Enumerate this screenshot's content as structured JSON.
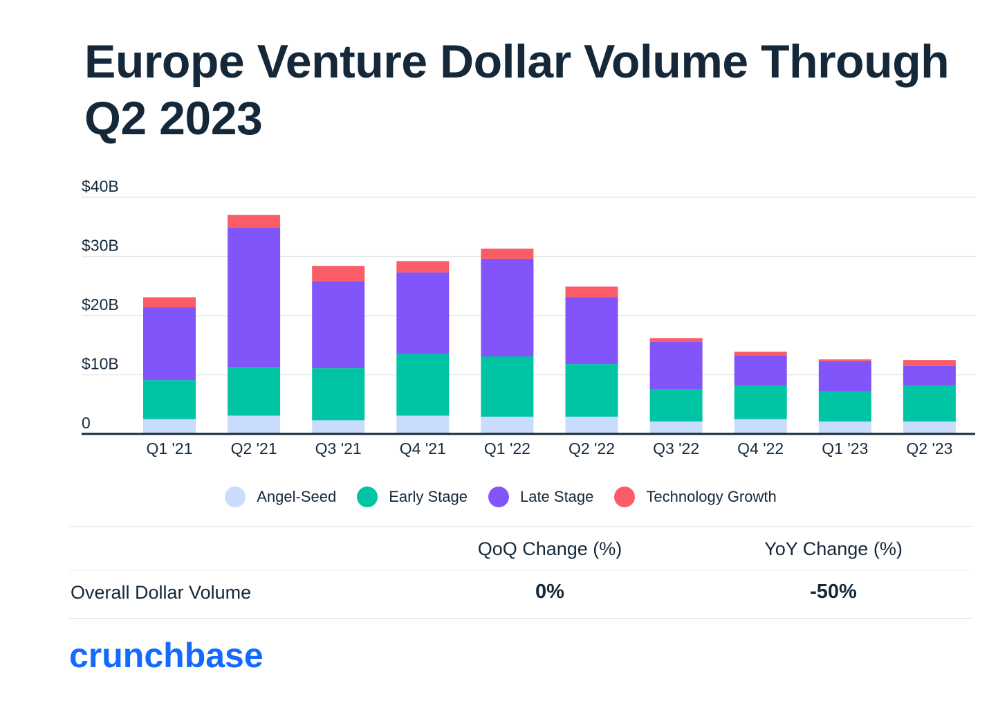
{
  "title": "Europe Venture Dollar Volume Through Q2 2023",
  "chart_data": {
    "type": "bar",
    "stacked": true,
    "categories": [
      "Q1 '21",
      "Q2 '21",
      "Q3 '21",
      "Q4 '21",
      "Q1 '22",
      "Q2 '22",
      "Q3 '22",
      "Q4 '22",
      "Q1 '23",
      "Q2 '23"
    ],
    "series": [
      {
        "name": "Angel-Seed",
        "color": "#c9dcfb",
        "values": [
          2.5,
          3.1,
          2.3,
          3.1,
          2.9,
          2.9,
          2.1,
          2.5,
          2.1,
          2.1
        ]
      },
      {
        "name": "Early Stage",
        "color": "#00c4a3",
        "values": [
          6.6,
          8.2,
          8.8,
          10.4,
          10.2,
          8.9,
          5.5,
          5.6,
          5.1,
          6.0
        ]
      },
      {
        "name": "Late Stage",
        "color": "#8155fa",
        "values": [
          12.3,
          23.6,
          14.7,
          13.8,
          16.5,
          11.3,
          8.0,
          5.2,
          5.1,
          3.4
        ]
      },
      {
        "name": "Technology Growth",
        "color": "#fa5c68",
        "values": [
          1.7,
          2.1,
          2.6,
          1.9,
          1.7,
          1.8,
          0.6,
          0.6,
          0.3,
          1.0
        ]
      }
    ],
    "y_ticks": [
      {
        "value": 0,
        "label": "0"
      },
      {
        "value": 10,
        "label": "$10B"
      },
      {
        "value": 20,
        "label": "$20B"
      },
      {
        "value": 30,
        "label": "$30B"
      },
      {
        "value": 40,
        "label": "$40B"
      }
    ],
    "ylim": [
      0,
      40
    ],
    "xlabel": "",
    "ylabel": "",
    "legend_position": "bottom-center",
    "grid": true
  },
  "summary": {
    "headers": [
      "QoQ Change (%)",
      "YoY Change (%)"
    ],
    "row_label": "Overall Dollar Volume",
    "values": [
      "0%",
      "-50%"
    ]
  },
  "brand": "crunchbase"
}
